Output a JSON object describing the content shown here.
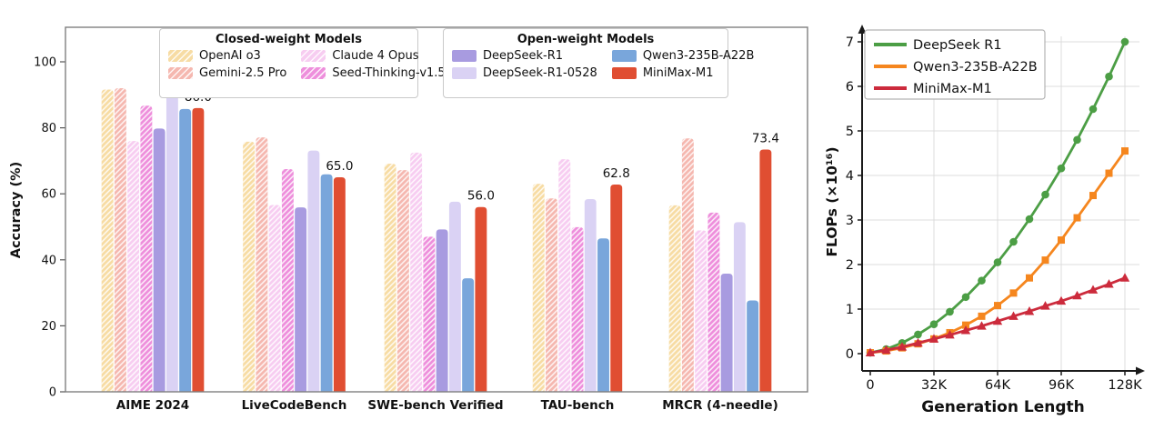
{
  "chart_data": [
    {
      "type": "bar",
      "ylabel": "Accuracy (%)",
      "ylim": [
        0,
        110
      ],
      "yticks": [
        0,
        20,
        40,
        60,
        80,
        100
      ],
      "grid": false,
      "categories": [
        "AIME 2024",
        "LiveCodeBench",
        "SWE-bench Verified",
        "TAU-bench",
        "MRCR (4-needle)"
      ],
      "legend_groups": [
        {
          "title": "Closed-weight Models",
          "items": [
            "OpenAI o3",
            "Gemini-2.5 Pro",
            "Claude 4 Opus",
            "Seed-Thinking-v1.5"
          ]
        },
        {
          "title": "Open-weight Models",
          "items": [
            "DeepSeek-R1",
            "DeepSeek-R1-0528",
            "Qwen3-235B-A22B",
            "MiniMax-M1"
          ]
        }
      ],
      "series": [
        {
          "name": "OpenAI o3",
          "color": "#F7DCA4",
          "hatch": true,
          "values": [
            91.6,
            75.8,
            69.1,
            63.0,
            56.5
          ]
        },
        {
          "name": "Gemini-2.5 Pro",
          "color": "#F5B8B0",
          "hatch": true,
          "values": [
            92.0,
            77.1,
            67.2,
            58.6,
            76.8
          ]
        },
        {
          "name": "Claude 4 Opus",
          "color": "#F7CDF1",
          "hatch": true,
          "values": [
            76.0,
            56.6,
            72.5,
            70.5,
            48.9
          ]
        },
        {
          "name": "Seed-Thinking-v1.5",
          "color": "#EE8FDC",
          "hatch": true,
          "values": [
            86.7,
            67.5,
            47.0,
            49.9,
            54.3
          ]
        },
        {
          "name": "DeepSeek-R1",
          "color": "#A89BE0",
          "hatch": false,
          "values": [
            79.8,
            55.9,
            49.2,
            null,
            35.8
          ]
        },
        {
          "name": "DeepSeek-R1-0528",
          "color": "#DAD2F4",
          "hatch": false,
          "values": [
            91.4,
            73.1,
            57.6,
            58.4,
            51.4
          ]
        },
        {
          "name": "Qwen3-235B-A22B",
          "color": "#79A6DB",
          "hatch": false,
          "values": [
            85.7,
            65.9,
            34.4,
            46.5,
            27.7
          ]
        },
        {
          "name": "MiniMax-M1",
          "color": "#E04E32",
          "hatch": false,
          "values": [
            86.0,
            65.0,
            56.0,
            62.8,
            73.4
          ]
        }
      ],
      "annotated_series": "MiniMax-M1",
      "value_labels": [
        "86.0",
        "65.0",
        "56.0",
        "62.8",
        "73.4"
      ]
    },
    {
      "type": "line",
      "xlabel": "Generation Length",
      "ylabel": "FLOPs (×10¹⁶)",
      "xticks": [
        {
          "label": "0",
          "value": 0
        },
        {
          "label": "32K",
          "value": 32000
        },
        {
          "label": "64K",
          "value": 64000
        },
        {
          "label": "96K",
          "value": 96000
        },
        {
          "label": "128K",
          "value": 128000
        }
      ],
      "yticks": [
        0,
        1,
        2,
        3,
        4,
        5,
        6,
        7
      ],
      "ylim": [
        0,
        7.4
      ],
      "grid": true,
      "legend_position": "upper left",
      "x": [
        0,
        8000,
        16000,
        24000,
        32000,
        40000,
        48000,
        56000,
        64000,
        72000,
        80000,
        88000,
        96000,
        104000,
        112000,
        120000,
        128000
      ],
      "series": [
        {
          "name": "DeepSeek R1",
          "color": "#4C9E45",
          "marker": "circle",
          "values": [
            0.02,
            0.1,
            0.24,
            0.43,
            0.66,
            0.94,
            1.27,
            1.64,
            2.05,
            2.51,
            3.02,
            3.57,
            4.16,
            4.8,
            5.49,
            6.22,
            7.0
          ]
        },
        {
          "name": "Qwen3-235B-A22B",
          "color": "#F5861E",
          "marker": "square",
          "values": [
            0.02,
            0.06,
            0.13,
            0.22,
            0.33,
            0.47,
            0.64,
            0.84,
            1.08,
            1.36,
            1.7,
            2.1,
            2.55,
            3.05,
            3.55,
            4.05,
            4.55
          ]
        },
        {
          "name": "MiniMax-M1",
          "color": "#CC2B3C",
          "marker": "triangle",
          "values": [
            0.02,
            0.08,
            0.15,
            0.24,
            0.33,
            0.42,
            0.52,
            0.62,
            0.73,
            0.84,
            0.95,
            1.07,
            1.18,
            1.3,
            1.43,
            1.56,
            1.7
          ]
        }
      ]
    }
  ],
  "colors": {
    "axis": "#7f7f7f",
    "grid": "#dcdcdc",
    "text": "#111111",
    "hatch": "#ffffff"
  }
}
